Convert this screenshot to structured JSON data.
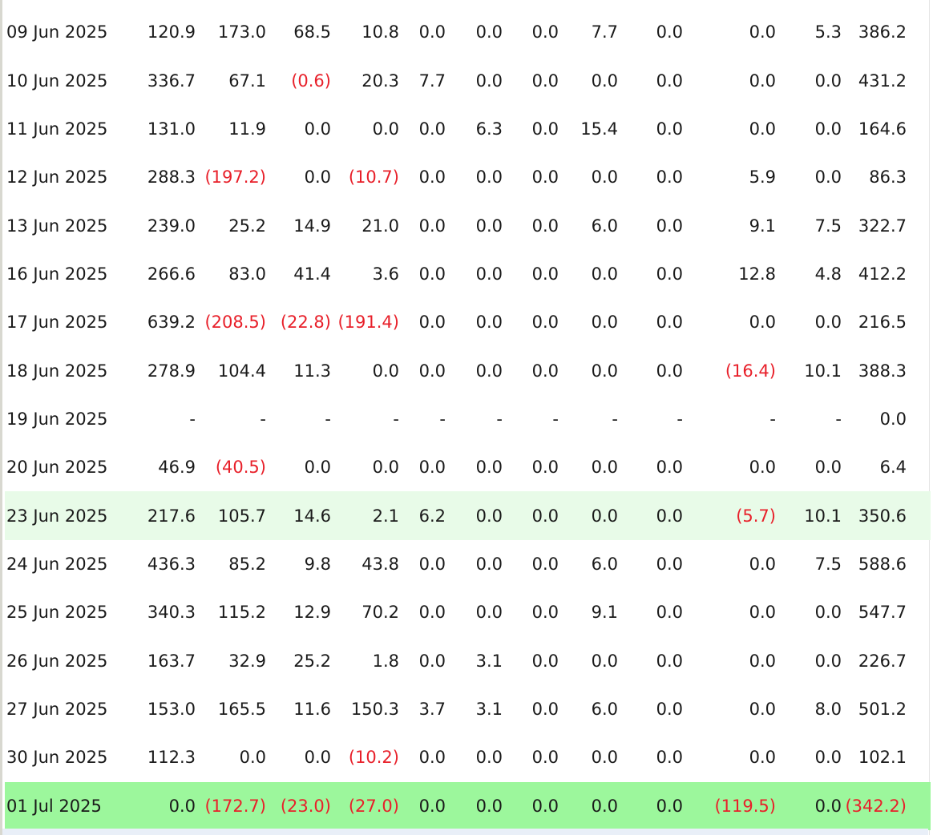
{
  "table": {
    "rows": [
      {
        "date": "09 Jun 2025",
        "cells": [
          "120.9",
          "173.0",
          "68.5",
          "10.8",
          "0.0",
          "0.0",
          "0.0",
          "7.7",
          "0.0",
          "0.0",
          "5.3",
          "386.2"
        ]
      },
      {
        "date": "10 Jun 2025",
        "cells": [
          "336.7",
          "67.1",
          "(0.6)",
          "20.3",
          "7.7",
          "0.0",
          "0.0",
          "0.0",
          "0.0",
          "0.0",
          "0.0",
          "431.2"
        ]
      },
      {
        "date": "11 Jun 2025",
        "cells": [
          "131.0",
          "11.9",
          "0.0",
          "0.0",
          "0.0",
          "6.3",
          "0.0",
          "15.4",
          "0.0",
          "0.0",
          "0.0",
          "164.6"
        ]
      },
      {
        "date": "12 Jun 2025",
        "cells": [
          "288.3",
          "(197.2)",
          "0.0",
          "(10.7)",
          "0.0",
          "0.0",
          "0.0",
          "0.0",
          "0.0",
          "5.9",
          "0.0",
          "86.3"
        ]
      },
      {
        "date": "13 Jun 2025",
        "cells": [
          "239.0",
          "25.2",
          "14.9",
          "21.0",
          "0.0",
          "0.0",
          "0.0",
          "6.0",
          "0.0",
          "9.1",
          "7.5",
          "322.7"
        ]
      },
      {
        "date": "16 Jun 2025",
        "cells": [
          "266.6",
          "83.0",
          "41.4",
          "3.6",
          "0.0",
          "0.0",
          "0.0",
          "0.0",
          "0.0",
          "12.8",
          "4.8",
          "412.2"
        ]
      },
      {
        "date": "17 Jun 2025",
        "cells": [
          "639.2",
          "(208.5)",
          "(22.8)",
          "(191.4)",
          "0.0",
          "0.0",
          "0.0",
          "0.0",
          "0.0",
          "0.0",
          "0.0",
          "216.5"
        ]
      },
      {
        "date": "18 Jun 2025",
        "cells": [
          "278.9",
          "104.4",
          "11.3",
          "0.0",
          "0.0",
          "0.0",
          "0.0",
          "0.0",
          "0.0",
          "(16.4)",
          "10.1",
          "388.3"
        ]
      },
      {
        "date": "19 Jun 2025",
        "cells": [
          "-",
          "-",
          "-",
          "-",
          "-",
          "-",
          "-",
          "-",
          "-",
          "-",
          "-",
          "0.0"
        ]
      },
      {
        "date": "20 Jun 2025",
        "cells": [
          "46.9",
          "(40.5)",
          "0.0",
          "0.0",
          "0.0",
          "0.0",
          "0.0",
          "0.0",
          "0.0",
          "0.0",
          "0.0",
          "6.4"
        ]
      },
      {
        "date": "23 Jun 2025",
        "highlight": "light",
        "cells": [
          "217.6",
          "105.7",
          "14.6",
          "2.1",
          "6.2",
          "0.0",
          "0.0",
          "0.0",
          "0.0",
          "(5.7)",
          "10.1",
          "350.6"
        ]
      },
      {
        "date": "24 Jun 2025",
        "cells": [
          "436.3",
          "85.2",
          "9.8",
          "43.8",
          "0.0",
          "0.0",
          "0.0",
          "6.0",
          "0.0",
          "0.0",
          "7.5",
          "588.6"
        ]
      },
      {
        "date": "25 Jun 2025",
        "cells": [
          "340.3",
          "115.2",
          "12.9",
          "70.2",
          "0.0",
          "0.0",
          "0.0",
          "9.1",
          "0.0",
          "0.0",
          "0.0",
          "547.7"
        ]
      },
      {
        "date": "26 Jun 2025",
        "cells": [
          "163.7",
          "32.9",
          "25.2",
          "1.8",
          "0.0",
          "3.1",
          "0.0",
          "0.0",
          "0.0",
          "0.0",
          "0.0",
          "226.7"
        ]
      },
      {
        "date": "27 Jun 2025",
        "cells": [
          "153.0",
          "165.5",
          "11.6",
          "150.3",
          "3.7",
          "3.1",
          "0.0",
          "6.0",
          "0.0",
          "0.0",
          "8.0",
          "501.2"
        ]
      },
      {
        "date": "30 Jun 2025",
        "cells": [
          "112.3",
          "0.0",
          "0.0",
          "(10.2)",
          "0.0",
          "0.0",
          "0.0",
          "0.0",
          "0.0",
          "0.0",
          "0.0",
          "102.1"
        ]
      },
      {
        "date": "01 Jul 2025",
        "highlight": "strong",
        "cells": [
          "0.0",
          "(172.7)",
          "(23.0)",
          "(27.0)",
          "0.0",
          "0.0",
          "0.0",
          "0.0",
          "0.0",
          "(119.5)",
          "0.0",
          "(342.2)"
        ]
      }
    ]
  },
  "colors": {
    "negative": "#e8202a",
    "highlight_light": "#e8fbe8",
    "highlight_strong": "#9cf79c"
  }
}
